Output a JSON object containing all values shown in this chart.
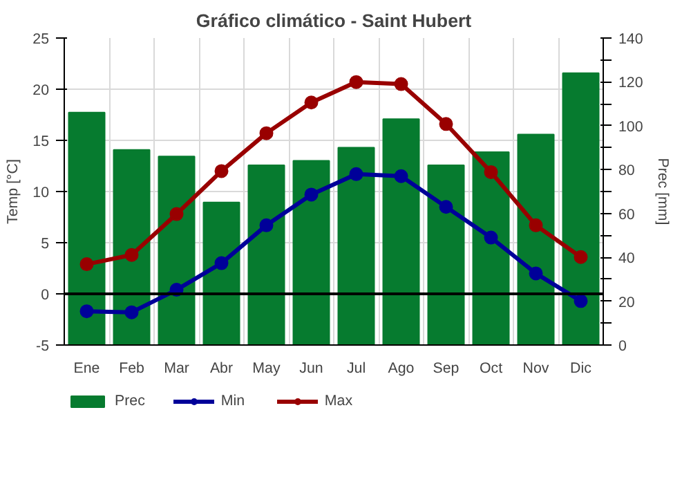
{
  "chart_data": {
    "type": "bar",
    "title": "Gráfico climático - Saint Hubert",
    "ylabel": "Temp [°C]",
    "y2label": "Prec [mm]",
    "categories": [
      "Ene",
      "Feb",
      "Mar",
      "Abr",
      "May",
      "Jun",
      "Jul",
      "Ago",
      "Sep",
      "Oct",
      "Nov",
      "Dic"
    ],
    "series": [
      {
        "name": "Prec",
        "axis": "y2",
        "color": "#067b2f",
        "values": [
          106,
          89,
          86,
          65,
          82,
          84,
          90,
          103,
          82,
          88,
          96,
          124
        ]
      },
      {
        "name": "Min",
        "type": "line",
        "color": "#000099",
        "values": [
          -1.7,
          -1.8,
          0.4,
          3.0,
          6.7,
          9.7,
          11.7,
          11.5,
          8.5,
          5.5,
          2.0,
          -0.7
        ]
      },
      {
        "name": "Max",
        "type": "line",
        "color": "#990000",
        "values": [
          2.9,
          3.8,
          7.8,
          12.0,
          15.7,
          18.7,
          20.7,
          20.5,
          16.6,
          11.9,
          6.7,
          3.6
        ]
      }
    ],
    "ylim": [
      -5,
      25
    ],
    "yticks": [
      -5,
      0,
      5,
      10,
      15,
      20,
      25
    ],
    "y2lim": [
      0,
      140
    ],
    "y2ticks": [
      0,
      {
        "value": 10,
        "label": null
      },
      20,
      {
        "value": 30,
        "label": null
      },
      40,
      {
        "value": 50,
        "label": null
      },
      60,
      {
        "value": 70,
        "label": null
      },
      80,
      {
        "value": 90,
        "label": null
      },
      100,
      {
        "value": 110,
        "label": null
      },
      120,
      {
        "value": 130,
        "label": null
      },
      140
    ],
    "ref_lines": [
      {
        "axis": "y",
        "value": 0,
        "color": "#000000"
      }
    ],
    "grid": true,
    "legend": "bottom",
    "marker": "circle"
  }
}
